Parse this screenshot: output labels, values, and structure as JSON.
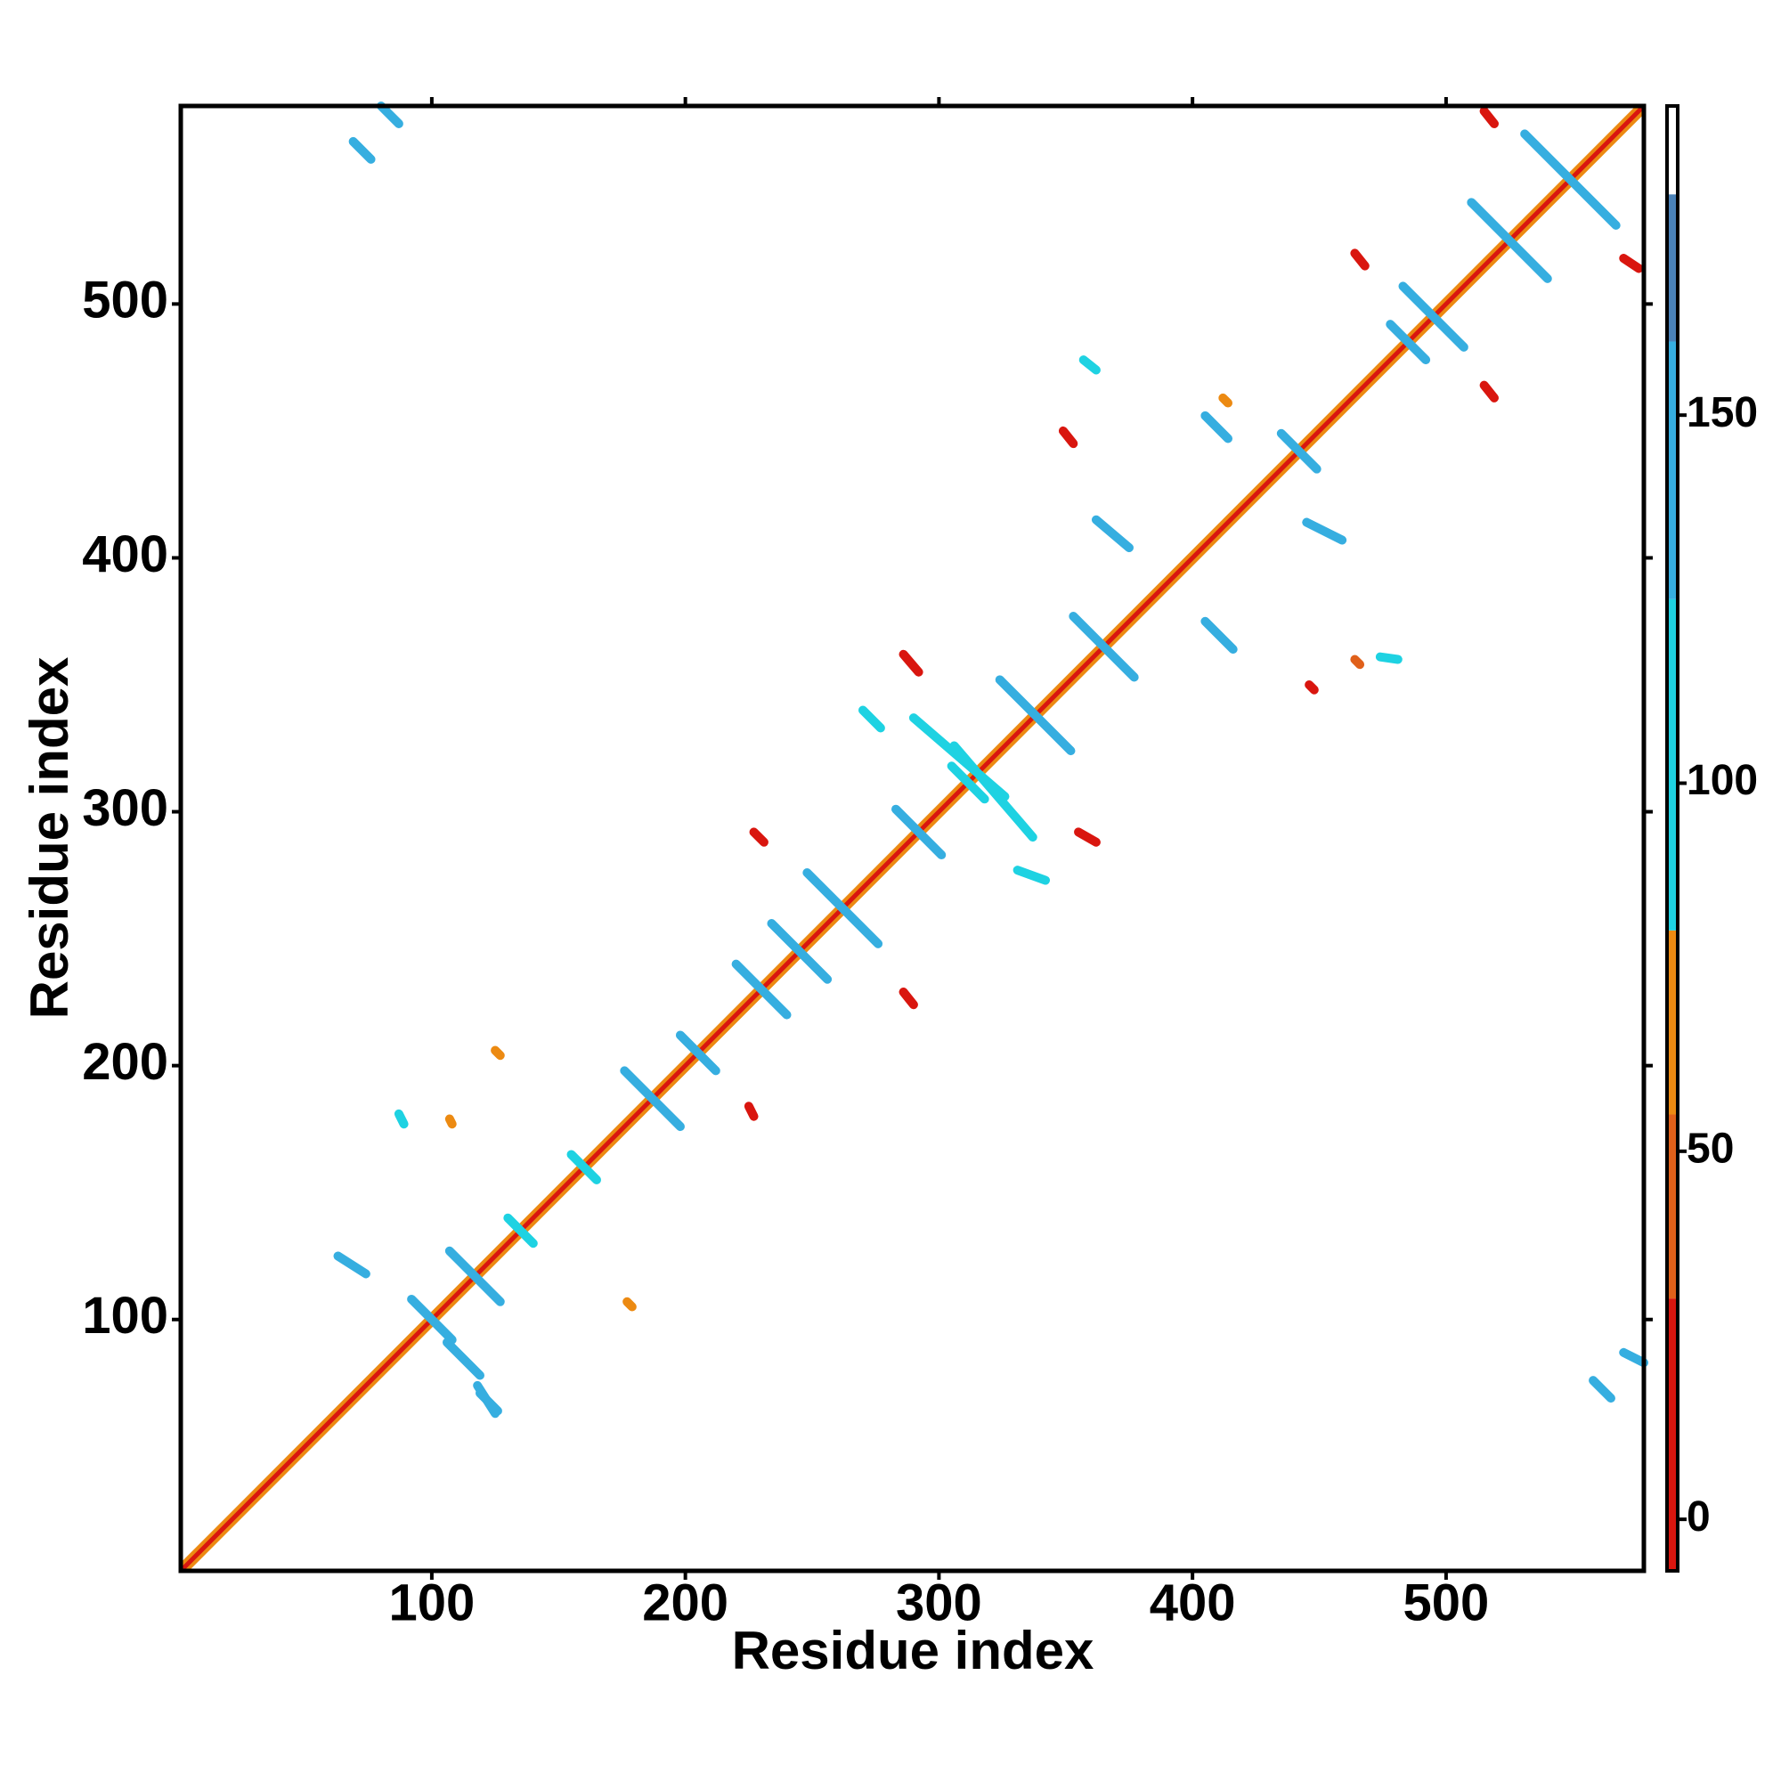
{
  "chart_data": {
    "type": "contact-map",
    "xlabel": "Residue index",
    "ylabel": "Residue index",
    "xlim": [
      1,
      578
    ],
    "ylim": [
      1,
      578
    ],
    "xticks": [
      100,
      200,
      300,
      400,
      500
    ],
    "yticks": [
      100,
      200,
      300,
      400,
      500
    ],
    "clim": [
      -7,
      192
    ],
    "cticks": [
      0,
      50,
      100,
      150
    ],
    "colorbar": [
      {
        "from": -7,
        "to": 30,
        "color": "#d9160f"
      },
      {
        "from": 30,
        "to": 55,
        "color": "#e0601a"
      },
      {
        "from": 55,
        "to": 80,
        "color": "#ec8a12"
      },
      {
        "from": 80,
        "to": 125,
        "color": "#1ed2e2"
      },
      {
        "from": 125,
        "to": 160,
        "color": "#36aee0"
      },
      {
        "from": 160,
        "to": 180,
        "color": "#4a82b8"
      },
      {
        "from": 180,
        "to": 192,
        "color": "#ffffff"
      }
    ],
    "segments": [
      [
        3,
        1,
        578,
        576,
        65
      ],
      [
        1,
        3,
        576,
        578,
        65
      ],
      [
        1,
        1,
        578,
        578,
        10
      ],
      [
        92,
        108,
        108,
        92,
        150
      ],
      [
        107,
        127,
        127,
        107,
        150
      ],
      [
        130,
        140,
        140,
        130,
        100
      ],
      [
        176,
        198,
        198,
        176,
        150
      ],
      [
        198,
        212,
        212,
        198,
        150
      ],
      [
        220,
        240,
        240,
        220,
        150
      ],
      [
        234,
        256,
        256,
        234,
        150
      ],
      [
        248,
        276,
        276,
        248,
        150
      ],
      [
        283,
        301,
        301,
        283,
        150
      ],
      [
        324,
        352,
        352,
        324,
        150
      ],
      [
        353,
        377,
        377,
        353,
        150
      ],
      [
        435,
        449,
        449,
        435,
        150
      ],
      [
        483,
        507,
        507,
        483,
        150
      ],
      [
        478,
        492,
        492,
        478,
        150
      ],
      [
        510,
        540,
        540,
        510,
        150
      ],
      [
        531,
        567,
        567,
        531,
        150
      ],
      [
        155,
        165,
        165,
        155,
        100
      ],
      [
        305,
        318,
        318,
        305,
        100
      ],
      [
        290,
        337,
        326,
        306,
        100
      ],
      [
        337,
        290,
        306,
        326,
        100
      ],
      [
        63,
        125,
        74,
        118,
        150
      ],
      [
        125,
        63,
        118,
        74,
        150
      ],
      [
        106,
        91,
        119,
        78,
        150
      ],
      [
        119,
        71,
        126,
        64,
        150
      ],
      [
        69,
        564,
        76,
        557,
        150
      ],
      [
        80,
        578,
        87,
        571,
        150
      ],
      [
        558,
        76,
        565,
        69,
        150
      ],
      [
        570,
        87,
        578,
        83,
        150
      ],
      [
        405,
        375,
        416,
        364,
        150
      ],
      [
        405,
        456,
        414,
        447,
        150
      ],
      [
        445,
        414,
        459,
        407,
        150
      ],
      [
        362,
        415,
        375,
        404,
        150
      ],
      [
        331,
        277,
        342,
        273,
        100
      ],
      [
        357,
        478,
        362,
        474,
        100
      ],
      [
        474,
        361,
        481,
        360,
        100
      ],
      [
        87,
        181,
        89,
        177,
        100
      ],
      [
        270,
        340,
        277,
        333,
        100
      ],
      [
        227,
        292,
        231,
        288,
        10
      ],
      [
        286,
        362,
        292,
        355,
        10
      ],
      [
        349,
        450,
        353,
        445,
        10
      ],
      [
        355,
        292,
        362,
        288,
        10
      ],
      [
        286,
        229,
        290,
        224,
        10
      ],
      [
        515,
        576,
        519,
        571,
        10
      ],
      [
        515,
        468,
        519,
        463,
        10
      ],
      [
        464,
        520,
        468,
        515,
        10
      ],
      [
        570,
        518,
        576,
        514,
        10
      ],
      [
        446,
        350,
        448,
        348,
        10
      ],
      [
        225,
        184,
        227,
        180,
        10
      ],
      [
        464,
        360,
        466,
        358,
        50
      ],
      [
        107,
        179,
        108,
        177,
        65
      ],
      [
        177,
        107,
        179,
        105,
        65
      ],
      [
        412,
        463,
        414,
        461,
        65
      ],
      [
        125,
        206,
        127,
        204,
        65
      ]
    ]
  }
}
